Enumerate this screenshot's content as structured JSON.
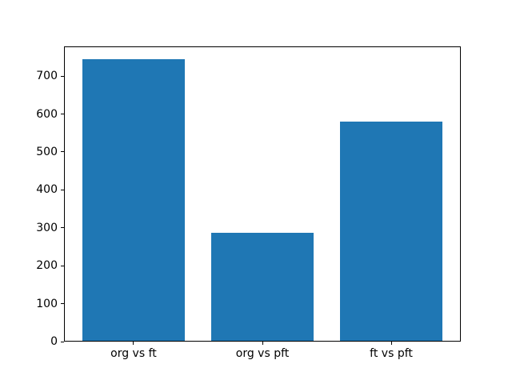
{
  "figure": {
    "background": "#ffffff"
  },
  "chart_data": {
    "type": "bar",
    "title": "",
    "xlabel": "",
    "ylabel": "",
    "categories": [
      "org vs ft",
      "org vs pft",
      "ft vs pft"
    ],
    "values": [
      742,
      285,
      578
    ],
    "ylim": [
      0,
      779
    ],
    "yticks": [
      0,
      100,
      200,
      300,
      400,
      500,
      600,
      700
    ],
    "bar_color": "#1f77b4",
    "axis_color": "#000000",
    "tick_label_color": "#000000",
    "grid": false,
    "legend": "none"
  }
}
